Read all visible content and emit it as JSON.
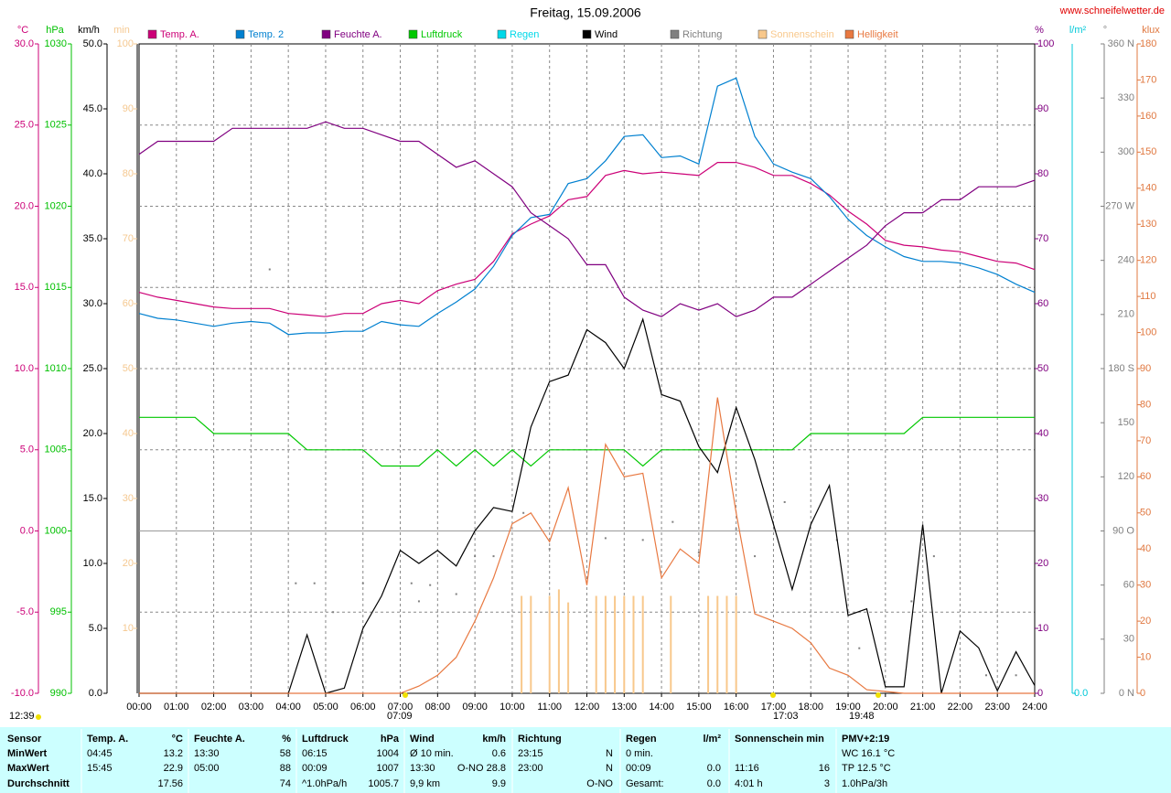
{
  "chart_data": {
    "type": "line",
    "title": "Freitag, 15.09.2006",
    "source": "www.schneifelwetter.de",
    "grid": true,
    "grid_axis": "temp",
    "xlim": [
      0,
      24
    ],
    "xticks": [
      {
        "value": 0,
        "label": "00:00"
      },
      {
        "value": 1,
        "label": "01:00"
      },
      {
        "value": 2,
        "label": "02:00"
      },
      {
        "value": 3,
        "label": "03:00"
      },
      {
        "value": 4,
        "label": "04:00"
      },
      {
        "value": 5,
        "label": "05:00"
      },
      {
        "value": 6,
        "label": "06:00"
      },
      {
        "value": 7,
        "label": "07:00"
      },
      {
        "value": 8,
        "label": "08:00"
      },
      {
        "value": 9,
        "label": "09:00"
      },
      {
        "value": 10,
        "label": "10:00"
      },
      {
        "value": 11,
        "label": "11:00"
      },
      {
        "value": 12,
        "label": "12:00"
      },
      {
        "value": 13,
        "label": "13:00"
      },
      {
        "value": 14,
        "label": "14:00"
      },
      {
        "value": 15,
        "label": "15:00"
      },
      {
        "value": 16,
        "label": "16:00"
      },
      {
        "value": 17,
        "label": "17:00"
      },
      {
        "value": 18,
        "label": "18:00"
      },
      {
        "value": 19,
        "label": "19:00"
      },
      {
        "value": 20,
        "label": "20:00"
      },
      {
        "value": 21,
        "label": "21:00"
      },
      {
        "value": 22,
        "label": "22:00"
      },
      {
        "value": 23,
        "label": "23:00"
      },
      {
        "value": 24,
        "label": "24:00"
      }
    ],
    "axes": [
      {
        "id": "temp",
        "label": "°C",
        "color": "#cc0077",
        "ylim": [
          -10,
          30
        ],
        "yticks": [
          {
            "value": -10,
            "label": "-10.0"
          },
          {
            "value": -5,
            "label": "-5.0"
          },
          {
            "value": 0,
            "label": "0.0"
          },
          {
            "value": 5,
            "label": "5.0"
          },
          {
            "value": 10,
            "label": "10.0"
          },
          {
            "value": 15,
            "label": "15.0"
          },
          {
            "value": 20,
            "label": "20.0"
          },
          {
            "value": 25,
            "label": "25.0"
          },
          {
            "value": 30,
            "label": "30.0"
          }
        ]
      },
      {
        "id": "hpa",
        "label": "hPa",
        "color": "#00c000",
        "ylim": [
          990,
          1030
        ],
        "yticks": [
          990,
          995,
          1000,
          1005,
          1010,
          1015,
          1020,
          1025,
          1030
        ]
      },
      {
        "id": "kmh",
        "label": "km/h",
        "color": "#000000",
        "ylim": [
          0,
          50
        ],
        "yticks": [
          {
            "value": 0,
            "label": "0.0"
          },
          {
            "value": 5,
            "label": "5.0"
          },
          {
            "value": 10,
            "label": "10.0"
          },
          {
            "value": 15,
            "label": "15.0"
          },
          {
            "value": 20,
            "label": "20.0"
          },
          {
            "value": 25,
            "label": "25.0"
          },
          {
            "value": 30,
            "label": "30.0"
          },
          {
            "value": 35,
            "label": "35.0"
          },
          {
            "value": 40,
            "label": "40.0"
          },
          {
            "value": 45,
            "label": "45.0"
          },
          {
            "value": 50,
            "label": "50.0"
          }
        ]
      },
      {
        "id": "min",
        "label": "min",
        "color": "#f5c890",
        "ylim": [
          0,
          100
        ],
        "yticks": [
          10,
          20,
          30,
          40,
          50,
          60,
          70,
          80,
          90,
          100
        ]
      },
      {
        "id": "pct",
        "label": "%",
        "color": "#800080",
        "ylim": [
          0,
          100
        ],
        "yticks": [
          0,
          10,
          20,
          30,
          40,
          50,
          60,
          70,
          80,
          90,
          100
        ]
      },
      {
        "id": "rain",
        "label": "l/m²",
        "color": "#00c8d8",
        "ylim": [
          0,
          10
        ],
        "yticks": [
          {
            "value": 0,
            "label": "0.0"
          }
        ]
      },
      {
        "id": "deg",
        "label": "°",
        "color": "#808080",
        "ylim": [
          0,
          360
        ],
        "yticks": [
          {
            "value": 0,
            "label": "0 N"
          },
          30,
          60,
          {
            "value": 90,
            "label": "90 O"
          },
          120,
          150,
          {
            "value": 180,
            "label": "180 S"
          },
          210,
          240,
          {
            "value": 270,
            "label": "270 W"
          },
          300,
          330,
          {
            "value": 360,
            "label": "360 N"
          }
        ]
      },
      {
        "id": "klux",
        "label": "klux",
        "color": "#e07840",
        "ylim": [
          0,
          180
        ],
        "yticks": [
          0,
          10,
          20,
          30,
          40,
          50,
          60,
          70,
          80,
          90,
          100,
          110,
          120,
          130,
          140,
          150,
          160,
          170,
          180
        ]
      }
    ],
    "x": [
      0,
      0.5,
      1,
      1.5,
      2,
      2.5,
      3,
      3.5,
      4,
      4.5,
      5,
      5.5,
      6,
      6.5,
      7,
      7.5,
      8,
      8.5,
      9,
      9.5,
      10,
      10.5,
      11,
      11.5,
      12,
      12.5,
      13,
      13.5,
      14,
      14.5,
      15,
      15.5,
      16,
      16.5,
      17,
      17.5,
      18,
      18.5,
      19,
      19.5,
      20,
      20.5,
      21,
      21.5,
      22,
      22.5,
      23,
      23.5,
      24
    ],
    "series": [
      {
        "name": "Temp. A.",
        "color": "#cc0077",
        "axis": "temp",
        "type": "line",
        "values": [
          14.7,
          14.4,
          14.2,
          14.0,
          13.8,
          13.7,
          13.7,
          13.7,
          13.4,
          13.3,
          13.2,
          13.4,
          13.4,
          14.0,
          14.2,
          14.0,
          14.8,
          15.2,
          15.5,
          16.6,
          18.3,
          18.9,
          19.4,
          20.4,
          20.6,
          21.9,
          22.2,
          22.0,
          22.1,
          22.0,
          21.9,
          22.7,
          22.7,
          22.4,
          21.9,
          21.9,
          21.4,
          20.7,
          19.7,
          18.9,
          17.9,
          17.6,
          17.5,
          17.3,
          17.2,
          16.9,
          16.6,
          16.5,
          16.1
        ]
      },
      {
        "name": "Temp. 2",
        "color": "#0080d0",
        "axis": "temp",
        "type": "line",
        "values": [
          13.4,
          13.1,
          13.0,
          12.8,
          12.6,
          12.8,
          12.9,
          12.8,
          12.1,
          12.2,
          12.2,
          12.3,
          12.3,
          12.9,
          12.7,
          12.6,
          13.4,
          14.1,
          14.9,
          16.3,
          18.2,
          19.3,
          19.5,
          21.4,
          21.7,
          22.8,
          24.3,
          24.4,
          23.0,
          23.1,
          22.6,
          27.4,
          27.9,
          24.3,
          22.6,
          22.1,
          21.7,
          20.6,
          19.2,
          18.2,
          17.5,
          16.9,
          16.6,
          16.6,
          16.5,
          16.2,
          15.8,
          15.2,
          14.7
        ]
      },
      {
        "name": "Feuchte A.",
        "color": "#800080",
        "axis": "pct",
        "type": "line",
        "values": [
          83,
          85,
          85,
          85,
          85,
          87,
          87,
          87,
          87,
          87,
          88,
          87,
          87,
          86,
          85,
          85,
          83,
          81,
          82,
          80,
          78,
          74,
          72,
          70,
          66,
          66,
          61,
          59,
          58,
          60,
          59,
          60,
          58,
          59,
          61,
          61,
          63,
          65,
          67,
          69,
          72,
          74,
          74,
          76,
          76,
          78,
          78,
          78,
          79
        ]
      },
      {
        "name": "Luftdruck",
        "color": "#00c800",
        "axis": "hpa",
        "type": "step",
        "values": [
          1007,
          1007,
          1007,
          1007,
          1006,
          1006,
          1006,
          1006,
          1006,
          1005,
          1005,
          1005,
          1005,
          1004,
          1004,
          1004,
          1005,
          1004,
          1005,
          1004,
          1005,
          1004,
          1005,
          1005,
          1005,
          1005,
          1005,
          1004,
          1005,
          1005,
          1005,
          1005,
          1005,
          1005,
          1005,
          1005,
          1006,
          1006,
          1006,
          1006,
          1006,
          1006,
          1007,
          1007,
          1007,
          1007,
          1007,
          1007,
          1007
        ]
      },
      {
        "name": "Regen",
        "color": "#00d8e8",
        "axis": "rain",
        "type": "none"
      },
      {
        "name": "Wind",
        "color": "#000000",
        "axis": "kmh",
        "type": "line",
        "values": [
          0,
          0,
          0,
          0,
          0,
          0,
          0,
          0,
          0,
          4.5,
          0,
          0.4,
          5.0,
          7.5,
          11.0,
          10.0,
          11.0,
          9.8,
          12.5,
          14.3,
          14.0,
          20.5,
          24.0,
          24.5,
          28.0,
          27.0,
          25.0,
          28.8,
          23.0,
          22.5,
          19.0,
          17.0,
          22.0,
          18.0,
          13.0,
          8.0,
          13.0,
          16.0,
          6.0,
          6.5,
          0.5,
          0.5,
          13.0,
          0.0,
          4.8,
          3.5,
          0.2,
          3.2,
          0.6
        ]
      },
      {
        "name": "Richtung",
        "color": "#808080",
        "axis": "deg",
        "type": "dots",
        "x": [
          3.5,
          4.2,
          4.7,
          5.2,
          6.0,
          7.3,
          7.5,
          7.8,
          8.5,
          9.0,
          9.5,
          10.3,
          11.0,
          12.5,
          13.5,
          14.3,
          15.0,
          16.0,
          16.5,
          17.3,
          18.7,
          19.3,
          20.7,
          21.3,
          22.7,
          23.5
        ],
        "values": [
          235,
          61,
          61,
          45,
          61,
          61,
          51,
          60,
          55,
          76,
          76,
          100,
          80,
          86,
          85,
          95,
          78,
          91,
          76,
          106,
          85,
          25,
          51,
          76,
          10,
          10
        ]
      },
      {
        "name": "Sonnenschein",
        "color": "#f8c88c",
        "axis": "min",
        "type": "bars",
        "x": [
          10.25,
          10.5,
          11.0,
          11.25,
          11.5,
          12.25,
          12.5,
          12.75,
          13.0,
          13.25,
          13.5,
          14.25,
          15.25,
          15.5,
          15.75,
          16.0
        ],
        "values": [
          15,
          15,
          15,
          16,
          14,
          15,
          15,
          15,
          15,
          15,
          15,
          15,
          15,
          15,
          15,
          15
        ]
      },
      {
        "name": "Helligkeit",
        "color": "#e87840",
        "axis": "klux",
        "type": "line",
        "values": [
          0,
          0,
          0,
          0,
          0,
          0,
          0,
          0,
          0,
          0,
          0,
          0,
          0,
          0,
          0,
          2,
          5,
          10,
          20,
          32,
          47,
          50,
          42,
          57,
          30,
          69,
          60,
          61,
          32,
          40,
          36,
          82,
          50,
          22,
          20,
          18,
          14,
          7,
          5,
          1,
          0.5,
          0,
          0,
          0,
          0,
          0,
          0,
          0,
          0
        ]
      }
    ],
    "annotations": [
      "12:39",
      "07:09",
      "17:03",
      "19:48"
    ]
  },
  "stats": {
    "headers": [
      [
        "Sensor",
        null
      ],
      [
        "Temp. A.",
        "°C"
      ],
      [
        "Feuchte A.",
        "%"
      ],
      [
        "Luftdruck",
        "hPa"
      ],
      [
        "Wind",
        "km/h"
      ],
      [
        "Richtung",
        null
      ],
      [
        "Regen",
        "l/m²"
      ],
      [
        "Sonnenschein min",
        null
      ],
      [
        "PMV+2:19",
        null
      ]
    ],
    "rows": [
      [
        [
          "MinWert",
          null
        ],
        [
          "04:45",
          "13.2"
        ],
        [
          "13:30",
          "58"
        ],
        [
          "06:15",
          "1004"
        ],
        [
          "Ø 10 min.",
          "0.6"
        ],
        [
          "23:15",
          "N"
        ],
        [
          "0 min.",
          null
        ],
        [
          null,
          null
        ],
        [
          "WC 16.1 °C",
          null
        ]
      ],
      [
        [
          "MaxWert",
          null
        ],
        [
          "15:45",
          "22.9"
        ],
        [
          "05:00",
          "88"
        ],
        [
          "00:09",
          "1007"
        ],
        [
          "13:30",
          "O-NO 28.8"
        ],
        [
          "23:00",
          "N"
        ],
        [
          "00:09",
          "0.0"
        ],
        [
          "11:16",
          "16"
        ],
        [
          "TP 12.5 °C",
          null
        ]
      ],
      [
        [
          "Durchschnitt",
          null
        ],
        [
          null,
          "17.56"
        ],
        [
          null,
          "74"
        ],
        [
          "^1.0hPa/h",
          "1005.7"
        ],
        [
          "9,9 km",
          "9.9"
        ],
        [
          null,
          "O-NO"
        ],
        [
          "Gesamt:",
          "0.0"
        ],
        [
          "4:01 h",
          "3"
        ],
        [
          "1.0hPa/3h",
          null
        ]
      ]
    ]
  }
}
